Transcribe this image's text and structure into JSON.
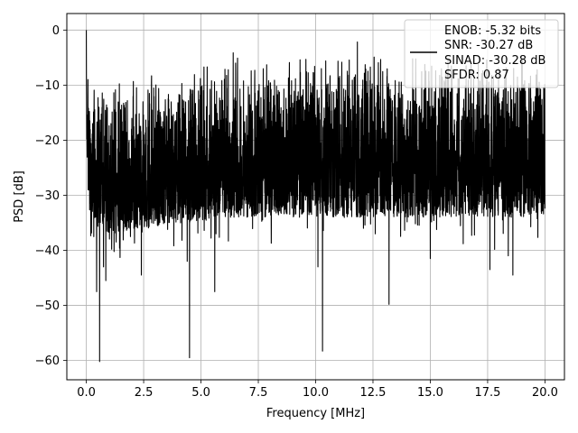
{
  "chart_data": {
    "type": "line",
    "title": "",
    "xlabel": "Frequency [MHz]",
    "ylabel": "PSD [dB]",
    "xlim": [
      -0.85,
      20.85
    ],
    "ylim": [
      -63.5,
      3.0
    ],
    "xticks": [
      0.0,
      2.5,
      5.0,
      7.5,
      10.0,
      12.5,
      15.0,
      17.5,
      20.0
    ],
    "xtick_labels": [
      "0.0",
      "2.5",
      "5.0",
      "7.5",
      "10.0",
      "12.5",
      "15.0",
      "17.5",
      "20.0"
    ],
    "yticks": [
      0,
      -10,
      -20,
      -30,
      -40,
      -50,
      -60
    ],
    "ytick_labels": [
      "0",
      "−10",
      "−20",
      "−30",
      "−40",
      "−50",
      "−60"
    ],
    "grid": true,
    "legend_position": "top-right",
    "series": [
      {
        "color": "#000000",
        "description": "noisy PSD trace",
        "x": [
          0.0,
          0.05,
          0.1,
          0.15,
          0.2,
          0.3,
          0.4,
          0.5,
          0.6,
          0.7,
          0.8,
          0.9,
          1.0,
          1.5,
          2.0,
          2.5,
          3.0,
          3.5,
          4.0,
          4.5,
          5.0,
          5.5,
          6.0,
          6.5,
          7.0,
          7.5,
          8.0,
          8.5,
          9.0,
          9.5,
          10.0,
          10.5,
          11.0,
          11.5,
          12.0,
          12.5,
          13.0,
          13.5,
          14.0,
          14.5,
          15.0,
          15.5,
          16.0,
          16.5,
          17.0,
          17.5,
          18.0,
          18.5,
          19.0,
          19.5,
          20.0
        ],
        "y_top": [
          0.0,
          -3,
          -6,
          -8,
          -9,
          -9,
          -9,
          -9,
          -9,
          -9,
          -9,
          -9,
          -9,
          -9,
          -8.5,
          -8,
          -8,
          -7.5,
          -7,
          -7,
          -6.5,
          -6,
          -6,
          -5.5,
          -5,
          -5,
          -5,
          -4.5,
          -4.5,
          -4.5,
          -4.5,
          -4.5,
          -4.5,
          -4.5,
          -4.5,
          -4.5,
          -4.5,
          -4.5,
          -4.5,
          -4.5,
          -4.5,
          -4.5,
          -4.5,
          -4.5,
          -4.5,
          -4.5,
          -4.5,
          -4.5,
          -4.5,
          -4.5,
          -4.5
        ],
        "y_bottom": [
          -20,
          -25,
          -30,
          -33,
          -33,
          -33,
          -35,
          -36,
          -37,
          -37,
          -37,
          -37,
          -37,
          -37,
          -36,
          -36,
          -36,
          -35,
          -35,
          -35,
          -35,
          -34,
          -34,
          -34,
          -34,
          -34,
          -34,
          -34,
          -34,
          -34,
          -34,
          -34,
          -34,
          -34,
          -34,
          -34,
          -34,
          -34,
          -34,
          -34,
          -34,
          -34,
          -34,
          -34,
          -34,
          -34,
          -34,
          -34,
          -34,
          -34,
          -34
        ],
        "dips": [
          {
            "x": 0.58,
            "y": -60.2
          },
          {
            "x": 0.45,
            "y": -47.5
          },
          {
            "x": 0.85,
            "y": -45.5
          },
          {
            "x": 0.75,
            "y": -43.0
          },
          {
            "x": 1.3,
            "y": -38.5
          },
          {
            "x": 2.4,
            "y": -44.5
          },
          {
            "x": 4.4,
            "y": -42.0
          },
          {
            "x": 4.5,
            "y": -59.5
          },
          {
            "x": 5.6,
            "y": -47.5
          },
          {
            "x": 10.3,
            "y": -58.3
          },
          {
            "x": 10.1,
            "y": -43.0
          },
          {
            "x": 13.2,
            "y": -49.8
          },
          {
            "x": 12.6,
            "y": -37.0
          },
          {
            "x": 15.0,
            "y": -41.5
          },
          {
            "x": 17.6,
            "y": -43.5
          },
          {
            "x": 18.6,
            "y": -44.5
          },
          {
            "x": 18.4,
            "y": -41.0
          }
        ]
      }
    ],
    "legend": {
      "lines": [
        "ENOB: -5.32 bits",
        "SNR: -30.27 dB",
        "SINAD: -30.28 dB",
        "SFDR: 0.87"
      ]
    }
  }
}
